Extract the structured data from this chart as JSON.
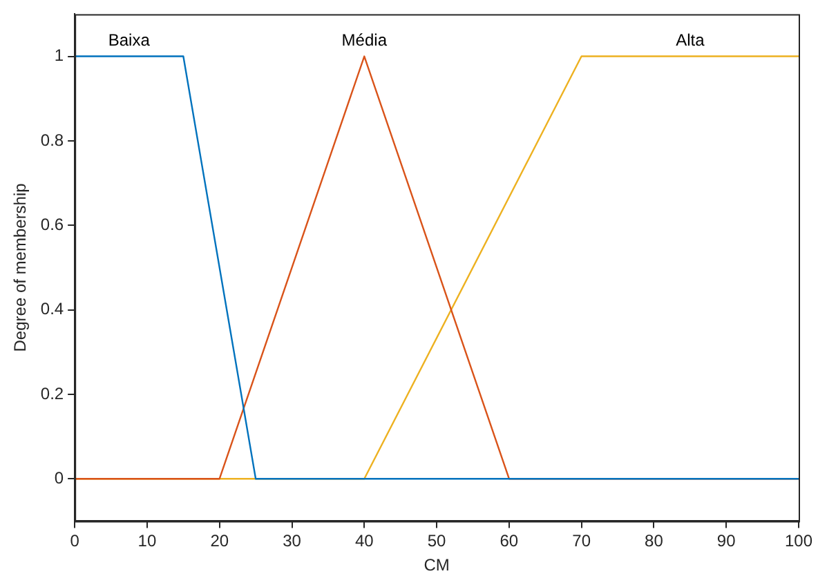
{
  "chart_data": {
    "type": "line",
    "xlabel": "CM",
    "ylabel": "Degree of membership",
    "series": [
      {
        "name": "Baixa",
        "color": "#0072bd",
        "x": [
          0,
          15,
          25,
          100
        ],
        "values": [
          1,
          1,
          0,
          0
        ]
      },
      {
        "name": "Média",
        "color": "#d95319",
        "x": [
          0,
          20,
          40,
          60,
          100
        ],
        "values": [
          0,
          0,
          1,
          0,
          0
        ]
      },
      {
        "name": "Alta",
        "color": "#edb120",
        "x": [
          0,
          40,
          70,
          100
        ],
        "values": [
          0,
          0,
          1,
          1
        ]
      }
    ],
    "xlim": [
      0,
      100
    ],
    "xticks": [
      0,
      10,
      20,
      30,
      40,
      50,
      60,
      70,
      80,
      90,
      100
    ],
    "ylim": [
      -0.1,
      1.1
    ],
    "yticks": [
      0,
      0.2,
      0.4,
      0.6,
      0.8,
      1
    ],
    "grid": false,
    "legend": false,
    "marker": "none",
    "line_style": "solid"
  }
}
